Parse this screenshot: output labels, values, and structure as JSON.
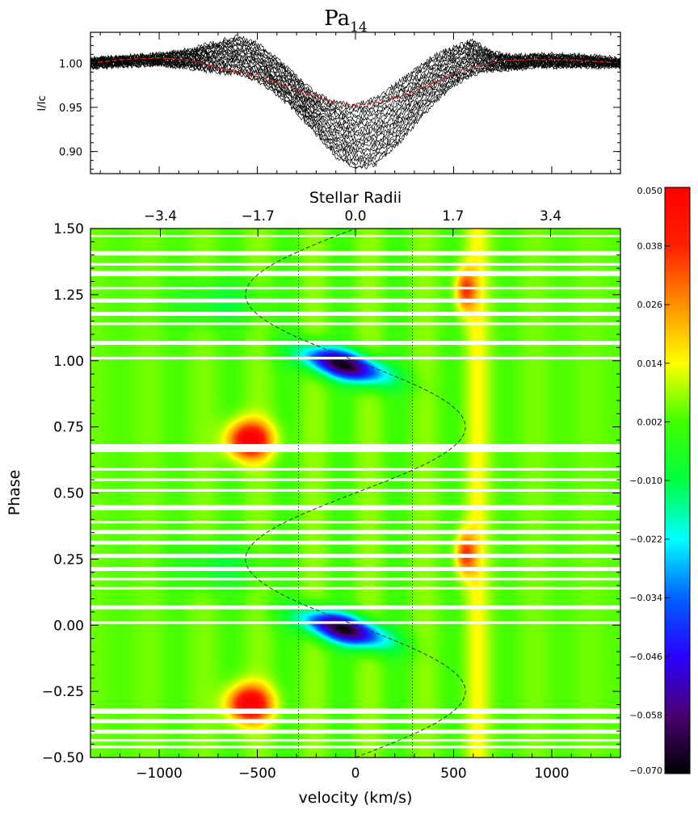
{
  "chart_data": [
    {
      "type": "line",
      "name": "profile",
      "title": "Pa",
      "title_subscript": "14",
      "ylabel": "I/Ic",
      "xlim": [
        -1350,
        1350
      ],
      "ylim": [
        0.875,
        1.035
      ],
      "yticks": [
        0.9,
        0.95,
        1.0
      ],
      "ytick_labels": [
        "0.90",
        "0.95",
        "1.00"
      ],
      "mean_profile": {
        "color": "#d42020",
        "x": [
          -1350,
          -1200,
          -1000,
          -850,
          -700,
          -500,
          -300,
          -150,
          0,
          150,
          300,
          450,
          550,
          650,
          750,
          900,
          1100,
          1350
        ],
        "y": [
          1.0,
          1.004,
          1.006,
          1.004,
          0.995,
          0.985,
          0.97,
          0.958,
          0.952,
          0.957,
          0.968,
          0.983,
          0.993,
          0.998,
          1.003,
          1.004,
          1.004,
          1.0
        ]
      },
      "individual_spectra": {
        "color": "#000000",
        "count": 22,
        "x": [
          -1350,
          -1150,
          -1000,
          -850,
          -700,
          -600,
          -500,
          -400,
          -300,
          -200,
          -100,
          0,
          100,
          200,
          300,
          400,
          500,
          600,
          700,
          800,
          1000,
          1200,
          1350
        ],
        "upper": [
          1.005,
          1.008,
          1.01,
          1.015,
          1.024,
          1.03,
          1.022,
          1.005,
          0.985,
          0.965,
          0.955,
          0.952,
          0.96,
          0.975,
          0.992,
          1.008,
          1.018,
          1.025,
          1.012,
          1.008,
          1.01,
          1.008,
          1.005
        ],
        "lower": [
          0.995,
          0.997,
          0.998,
          0.995,
          0.99,
          0.988,
          0.98,
          0.965,
          0.945,
          0.92,
          0.895,
          0.88,
          0.885,
          0.905,
          0.93,
          0.955,
          0.975,
          0.988,
          0.992,
          0.994,
          0.996,
          0.996,
          0.996
        ]
      }
    },
    {
      "type": "heatmap",
      "name": "dynamic-spectrum",
      "xlabel": "velocity (km/s)",
      "ylabel": "Phase",
      "top_axis_label": "Stellar Radii",
      "xlim": [
        -1350,
        1350
      ],
      "ylim": [
        -0.5,
        1.5
      ],
      "xticks": [
        -1000,
        -500,
        0,
        500,
        1000
      ],
      "xtick_labels": [
        "−1000",
        "−500",
        "0",
        "500",
        "1000"
      ],
      "yticks": [
        -0.5,
        -0.25,
        0.0,
        0.25,
        0.5,
        0.75,
        1.0,
        1.25,
        1.5
      ],
      "ytick_labels": [
        "−0.50",
        "−0.25",
        "0.00",
        "0.25",
        "0.50",
        "0.75",
        "1.00",
        "1.25",
        "1.50"
      ],
      "top_ticks_velocity": [
        -994,
        -497,
        0,
        497,
        994
      ],
      "top_tick_labels": [
        "−3.4",
        "−1.7",
        "0.0",
        "1.7",
        "3.4"
      ],
      "vertical_lines_velocity": [
        -290,
        290
      ],
      "sinusoid": {
        "amplitude_kms": 560,
        "phase_at_peak": 0.25,
        "sign_at_phase_0": 0
      },
      "phase_gaps": [
        [
          1.468,
          1.476
        ],
        [
          1.398,
          1.415
        ],
        [
          1.36,
          1.37
        ],
        [
          1.32,
          1.34
        ],
        [
          1.27,
          1.28
        ],
        [
          1.22,
          1.235
        ],
        [
          1.17,
          1.185
        ],
        [
          1.135,
          1.145
        ],
        [
          1.06,
          1.075
        ],
        [
          1.005,
          1.015
        ],
        [
          0.655,
          0.685
        ],
        [
          0.585,
          0.595
        ],
        [
          0.545,
          0.555
        ],
        [
          0.505,
          0.515
        ],
        [
          0.435,
          0.455
        ],
        [
          0.385,
          0.395
        ],
        [
          0.345,
          0.36
        ],
        [
          0.305,
          0.32
        ],
        [
          0.255,
          0.27
        ],
        [
          0.205,
          0.22
        ],
        [
          0.17,
          0.18
        ],
        [
          0.135,
          0.145
        ],
        [
          0.06,
          0.075
        ],
        [
          0.005,
          0.015
        ],
        [
          -0.315,
          -0.335
        ],
        [
          -0.355,
          -0.37
        ],
        [
          -0.395,
          -0.41
        ],
        [
          -0.43,
          -0.44
        ],
        [
          -0.455,
          -0.465
        ]
      ],
      "features": [
        {
          "kind": "absorption",
          "v": -60,
          "phase": 0.985,
          "sigma_v": 210,
          "sigma_phase": 0.055,
          "value": -0.07
        },
        {
          "kind": "absorption",
          "v": -60,
          "phase": -0.015,
          "sigma_v": 210,
          "sigma_phase": 0.055,
          "value": -0.07
        },
        {
          "kind": "emission",
          "v": -540,
          "phase": 0.7,
          "sigma_v": 110,
          "sigma_phase": 0.07,
          "value": 0.05
        },
        {
          "kind": "emission",
          "v": -540,
          "phase": -0.3,
          "sigma_v": 110,
          "sigma_phase": 0.07,
          "value": 0.05
        },
        {
          "kind": "emission",
          "v": 560,
          "phase": 1.27,
          "sigma_v": 50,
          "sigma_phase": 0.08,
          "value": 0.03
        },
        {
          "kind": "emission",
          "v": 560,
          "phase": 0.27,
          "sigma_v": 50,
          "sigma_phase": 0.08,
          "value": 0.03
        }
      ]
    },
    {
      "type": "colorbar",
      "name": "colorbar",
      "range": [
        -0.07,
        0.05
      ],
      "tick_labels": [
        "0.050",
        "0.038",
        "0.026",
        "0.014",
        "0.002",
        "−0.010",
        "−0.022",
        "−0.034",
        "−0.046",
        "−0.058",
        "−0.070"
      ],
      "tick_values": [
        0.05,
        0.038,
        0.026,
        0.014,
        0.002,
        -0.01,
        -0.022,
        -0.034,
        -0.046,
        -0.058,
        -0.07
      ],
      "colormap": [
        "#000000",
        "#4a0070",
        "#2a00ff",
        "#0060ff",
        "#00ffff",
        "#00ff40",
        "#40ff00",
        "#ffff00",
        "#ff9000",
        "#ff2000",
        "#ff0000"
      ]
    }
  ]
}
